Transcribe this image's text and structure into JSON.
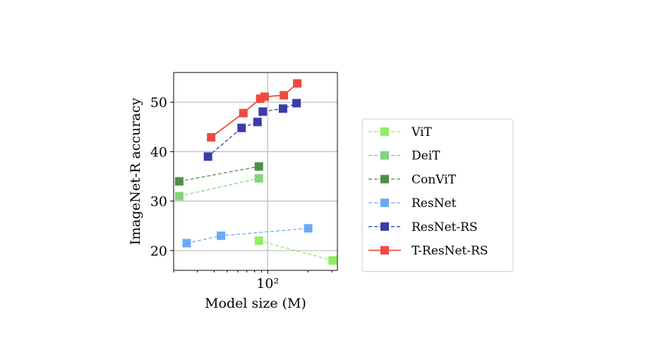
{
  "chart_data": {
    "type": "scatter",
    "title": "",
    "xlabel": "Model size (M)",
    "ylabel": "ImageNet-R accuracy",
    "x_scale": "log",
    "xlim": [
      20,
      330
    ],
    "ylim": [
      16,
      56
    ],
    "y_ticks": [
      20,
      30,
      40,
      50
    ],
    "x_ticks": [
      {
        "value": 100,
        "label": "10²"
      }
    ],
    "grid": true,
    "legend_position": "right-outside",
    "series": [
      {
        "name": "ViT",
        "color": "#90EE60",
        "line": "dashed",
        "marker": "square",
        "x": [
          86,
          304
        ],
        "y": [
          22,
          18
        ]
      },
      {
        "name": "DeiT",
        "color": "#7ED67A",
        "line": "dashed",
        "marker": "square",
        "x": [
          22,
          86
        ],
        "y": [
          31,
          34.6
        ]
      },
      {
        "name": "ConViT",
        "color": "#4E8E49",
        "line": "dashed",
        "marker": "square",
        "x": [
          22,
          86
        ],
        "y": [
          34,
          37
        ]
      },
      {
        "name": "ResNet",
        "color": "#6AABF5",
        "line": "dashed",
        "marker": "square",
        "x": [
          25,
          45,
          200
        ],
        "y": [
          21.5,
          23,
          24.5
        ]
      },
      {
        "name": "ResNet-RS",
        "color": "#3A3BAB",
        "line": "dashed",
        "marker": "square",
        "x": [
          36,
          64,
          84,
          92,
          130,
          164
        ],
        "y": [
          39,
          44.8,
          46,
          48.1,
          48.7,
          49.8
        ]
      },
      {
        "name": "T-ResNet-RS",
        "color": "#EE4B40",
        "line": "solid",
        "marker": "square",
        "x": [
          38,
          66,
          88,
          95,
          132,
          166
        ],
        "y": [
          42.9,
          47.8,
          50.7,
          51.1,
          51.4,
          53.8
        ]
      }
    ]
  }
}
